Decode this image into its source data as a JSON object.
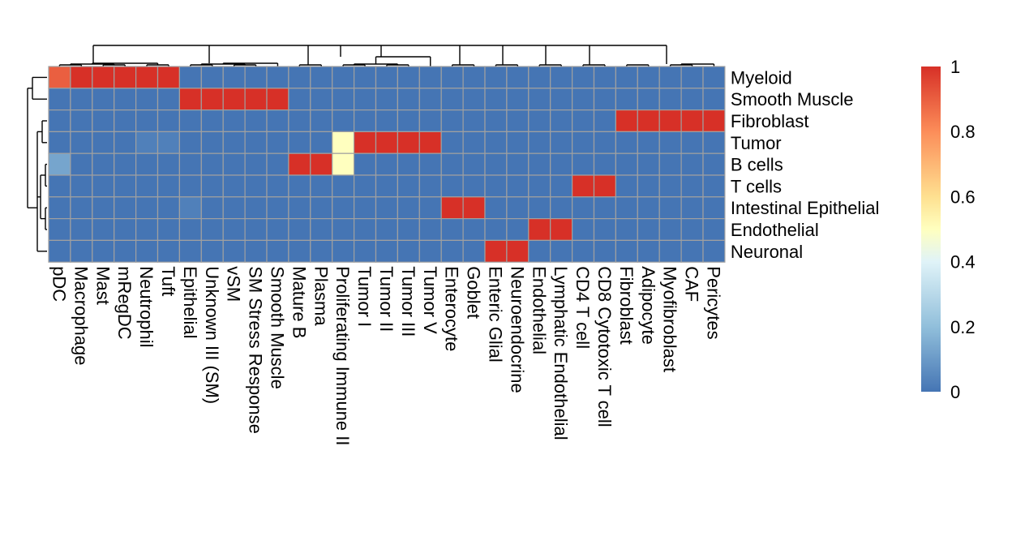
{
  "chart_data": {
    "type": "heatmap",
    "title": "",
    "rows": [
      "Myeloid",
      "Smooth Muscle",
      "Fibroblast",
      "Tumor",
      "B cells",
      "T cells",
      "Intestinal Epithelial",
      "Endothelial",
      "Neuronal"
    ],
    "columns": [
      "pDC",
      "Macrophage",
      "Mast",
      "mRegDC",
      "Neutrophil",
      "Tuft",
      "Epithelial",
      "Unknown III (SM)",
      "vSM",
      "SM Stress Response",
      "Smooth Muscle",
      "Mature B",
      "Plasma",
      "Proliferating Immune II",
      "Tumor I",
      "Tumor II",
      "Tumor III",
      "Tumor V",
      "Enterocyte",
      "Goblet",
      "Enteric Glial",
      "Neuroendocrine",
      "Endothelial",
      "Lymphatic Endothelial",
      "CD4 T cell",
      "CD8 Cytotoxic T cell",
      "Fibroblast",
      "Adipocyte",
      "Myofibroblast",
      "CAF",
      "Pericytes"
    ],
    "values": [
      [
        0.9,
        1,
        1,
        1,
        1,
        1,
        0,
        0,
        0,
        0,
        0,
        0,
        0,
        0,
        0,
        0,
        0,
        0,
        0,
        0,
        0,
        0,
        0,
        0,
        0,
        0,
        0,
        0,
        0,
        0,
        0
      ],
      [
        0,
        0,
        0,
        0,
        0,
        0,
        1,
        1,
        1,
        1,
        1,
        0,
        0,
        0,
        0,
        0,
        0,
        0,
        0,
        0,
        0,
        0,
        0,
        0,
        0,
        0,
        0,
        0,
        0,
        0,
        0
      ],
      [
        0,
        0,
        0,
        0,
        0,
        0,
        0,
        0,
        0,
        0,
        0,
        0,
        0,
        0,
        0,
        0,
        0,
        0,
        0,
        0,
        0,
        0,
        0,
        0,
        0,
        0,
        1,
        1,
        1,
        1,
        1
      ],
      [
        0,
        0,
        0,
        0,
        0.03,
        0.03,
        0,
        0,
        0,
        0,
        0,
        0,
        0,
        0.5,
        1,
        1,
        1,
        1,
        0,
        0,
        0,
        0,
        0,
        0,
        0,
        0,
        0,
        0,
        0,
        0,
        0
      ],
      [
        0.13,
        0,
        0,
        0,
        0,
        0,
        0,
        0,
        0,
        0,
        0,
        1,
        1,
        0.5,
        0,
        0,
        0,
        0,
        0,
        0,
        0,
        0,
        0,
        0,
        0,
        0,
        0,
        0,
        0,
        0,
        0
      ],
      [
        0,
        0,
        0,
        0,
        0,
        0,
        0,
        0,
        0,
        0,
        0,
        0,
        0,
        0,
        0,
        0,
        0,
        0,
        0,
        0,
        0,
        0,
        0,
        0,
        1,
        1,
        0,
        0,
        0,
        0,
        0
      ],
      [
        0,
        0,
        0,
        0,
        0,
        0,
        0.03,
        0,
        0,
        0,
        0,
        0,
        0,
        0,
        0,
        0,
        0,
        0,
        1,
        1,
        0,
        0,
        0,
        0,
        0,
        0,
        0,
        0,
        0,
        0,
        0
      ],
      [
        0,
        0,
        0,
        0,
        0,
        0,
        0,
        0,
        0,
        0,
        0,
        0,
        0,
        0,
        0,
        0,
        0,
        0,
        0,
        0,
        0,
        0,
        1,
        1,
        0,
        0,
        0,
        0,
        0,
        0,
        0
      ],
      [
        0,
        0,
        0,
        0,
        0,
        0,
        0,
        0,
        0,
        0,
        0,
        0,
        0,
        0,
        0,
        0,
        0,
        0,
        0,
        0,
        1,
        1,
        0,
        0,
        0,
        0,
        0,
        0,
        0,
        0,
        0
      ]
    ],
    "color_scale": {
      "stops": [
        {
          "value": 0,
          "color": "#4575b4"
        },
        {
          "value": 0.2,
          "color": "#91bfdb"
        },
        {
          "value": 0.4,
          "color": "#e0f3f8"
        },
        {
          "value": 0.5,
          "color": "#ffffbf"
        },
        {
          "value": 0.6,
          "color": "#fee090"
        },
        {
          "value": 0.8,
          "color": "#fc8d59"
        },
        {
          "value": 1,
          "color": "#d73027"
        }
      ],
      "legend_ticks": [
        "0",
        "0.2",
        "0.4",
        "0.6",
        "0.8",
        "1"
      ],
      "legend_tick_values": [
        0,
        0.2,
        0.4,
        0.6,
        0.8,
        1
      ],
      "range": [
        0,
        1
      ]
    },
    "cell_border_color": "#a0a0a0",
    "legend_position": "right",
    "column_dendrogram": true,
    "row_dendrogram": true
  }
}
